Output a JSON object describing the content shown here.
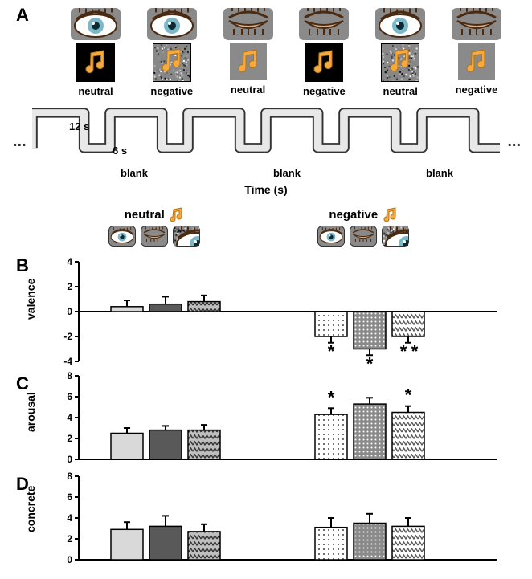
{
  "figure": {
    "panelA": {
      "label": "A",
      "columns": [
        {
          "eye": "open",
          "noteBg": "#000000",
          "cond": "neutral"
        },
        {
          "eye": "open",
          "noteBg": "noise",
          "cond": "negative"
        },
        {
          "eye": "closed",
          "noteBg": "none",
          "cond": "neutral"
        },
        {
          "eye": "closed",
          "noteBg": "#000000",
          "cond": "negative"
        },
        {
          "eye": "open",
          "noteBg": "noise",
          "cond": "neutral"
        },
        {
          "eye": "closed",
          "noteBg": "none",
          "cond": "negative"
        }
      ],
      "wave": {
        "nBlocks": 6,
        "on_s": 12,
        "off_s": 6,
        "on_label": "12 s",
        "off_label": "6 s",
        "blank_label": "blank",
        "stroke": "#e8e8e8",
        "strokeWidth": 10,
        "outline": "#333"
      },
      "xaxis": "Time (s)",
      "ellipsis": "..."
    },
    "groupHeaders": {
      "neutral": {
        "label": "neutral",
        "icons": [
          "eye-open",
          "eye-closed",
          "eye-noise"
        ]
      },
      "negative": {
        "label": "negative",
        "icons": [
          "eye-open",
          "eye-closed",
          "eye-noise"
        ]
      }
    },
    "panelB": {
      "label": "B",
      "ylabel": "valence",
      "ylim": [
        -4,
        4
      ],
      "yticks": [
        -4,
        -2,
        0,
        2,
        4
      ],
      "tickFont": 12,
      "groups": [
        "neutral",
        "negative"
      ],
      "bars": {
        "neutral": [
          {
            "val": 0.4,
            "err": 0.5,
            "fill": "light"
          },
          {
            "val": 0.6,
            "err": 0.6,
            "fill": "dark"
          },
          {
            "val": 0.8,
            "err": 0.5,
            "fill": "zig"
          }
        ],
        "negative": [
          {
            "val": -2.0,
            "err": 0.5,
            "fill": "dotL"
          },
          {
            "val": -3.0,
            "err": 0.5,
            "fill": "dotD"
          },
          {
            "val": -2.0,
            "err": 0.5,
            "fill": "zigL"
          }
        ]
      },
      "stars": [
        {
          "group": "negative",
          "bar": 0,
          "txt": "*",
          "below": true
        },
        {
          "group": "negative",
          "bar": 1,
          "txt": "*",
          "below": true
        },
        {
          "group": "negative",
          "bar": 2,
          "txt": "*",
          "below": true,
          "double": true
        }
      ]
    },
    "panelC": {
      "label": "C",
      "ylabel": "arousal",
      "ylim": [
        0,
        8
      ],
      "yticks": [
        0,
        2,
        4,
        6,
        8
      ],
      "tickFont": 12,
      "bars": {
        "neutral": [
          {
            "val": 2.5,
            "err": 0.5,
            "fill": "light"
          },
          {
            "val": 2.8,
            "err": 0.4,
            "fill": "dark"
          },
          {
            "val": 2.8,
            "err": 0.5,
            "fill": "zig"
          }
        ],
        "negative": [
          {
            "val": 4.3,
            "err": 0.6,
            "fill": "dotL"
          },
          {
            "val": 5.3,
            "err": 0.6,
            "fill": "dotD"
          },
          {
            "val": 4.5,
            "err": 0.6,
            "fill": "zigL"
          }
        ]
      },
      "stars": [
        {
          "group": "negative",
          "bar": 0,
          "txt": "*"
        },
        {
          "group": "negative",
          "bar": 2,
          "txt": "*"
        }
      ]
    },
    "panelD": {
      "label": "D",
      "ylabel": "concrete",
      "ylim": [
        0,
        8
      ],
      "yticks": [
        0,
        2,
        4,
        6,
        8
      ],
      "tickFont": 12,
      "bars": {
        "neutral": [
          {
            "val": 2.9,
            "err": 0.7,
            "fill": "light"
          },
          {
            "val": 3.2,
            "err": 1.0,
            "fill": "dark"
          },
          {
            "val": 2.7,
            "err": 0.7,
            "fill": "zig"
          }
        ],
        "negative": [
          {
            "val": 3.1,
            "err": 0.9,
            "fill": "dotL"
          },
          {
            "val": 3.5,
            "err": 0.9,
            "fill": "dotD"
          },
          {
            "val": 3.2,
            "err": 0.8,
            "fill": "zigL"
          }
        ]
      },
      "stars": []
    },
    "styles": {
      "barWidth": 40,
      "barGap": 8,
      "groupGap": 110,
      "groupStartX": 40,
      "axisColor": "#000",
      "axisWidth": 2,
      "errCap": 8,
      "fills": {
        "light": "#d9d9d9",
        "dark": "#595959",
        "zig": "pattern-zig-dark",
        "dotL": "pattern-dot-l",
        "dotD": "pattern-dot-d",
        "zigL": "pattern-zig-light"
      },
      "noteColors": {
        "body": "#f4a941",
        "shadow": "#b57312"
      },
      "eyeColors": {
        "iris": "#7db8c9",
        "pupil": "#0b2b33",
        "lash": "#4a2a10",
        "lid": "#d9b38c"
      }
    }
  }
}
